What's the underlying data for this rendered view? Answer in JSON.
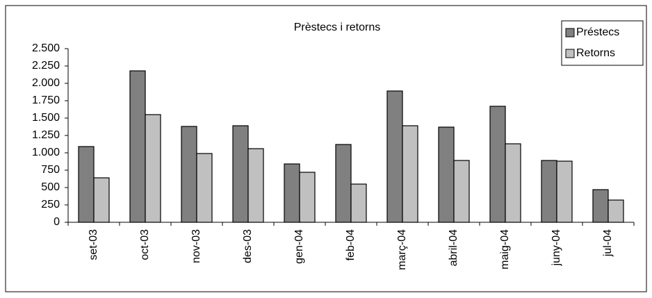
{
  "chart_data": {
    "type": "bar",
    "title": "Prèstecs i retorns",
    "categories": [
      "set-03",
      "oct-03",
      "nov-03",
      "des-03",
      "gen-04",
      "feb-04",
      "març-04",
      "abril-04",
      "maig-04",
      "juny-04",
      "jul-04"
    ],
    "series": [
      {
        "name": "Préstecs",
        "color": "#808080",
        "values": [
          1090,
          2180,
          1380,
          1390,
          840,
          1120,
          1890,
          1370,
          1670,
          890,
          470
        ]
      },
      {
        "name": "Retorns",
        "color": "#c0c0c0",
        "values": [
          640,
          1550,
          990,
          1060,
          720,
          550,
          1390,
          890,
          1130,
          880,
          320
        ]
      }
    ],
    "ylim": [
      0,
      2500
    ],
    "yticks": [
      0,
      {
        "value": 250,
        "label": "250"
      },
      {
        "value": 500,
        "label": "500"
      },
      {
        "value": 750,
        "label": "750"
      },
      {
        "value": 1000,
        "label": "1.000"
      },
      {
        "value": 1250,
        "label": "1.250"
      },
      {
        "value": 1500,
        "label": "1.500"
      },
      {
        "value": 1750,
        "label": "1.750"
      },
      {
        "value": 2000,
        "label": "2.000"
      },
      {
        "value": 2250,
        "label": "2.250"
      },
      {
        "value": 2500,
        "label": "2.500"
      }
    ],
    "legend": "top-right"
  }
}
